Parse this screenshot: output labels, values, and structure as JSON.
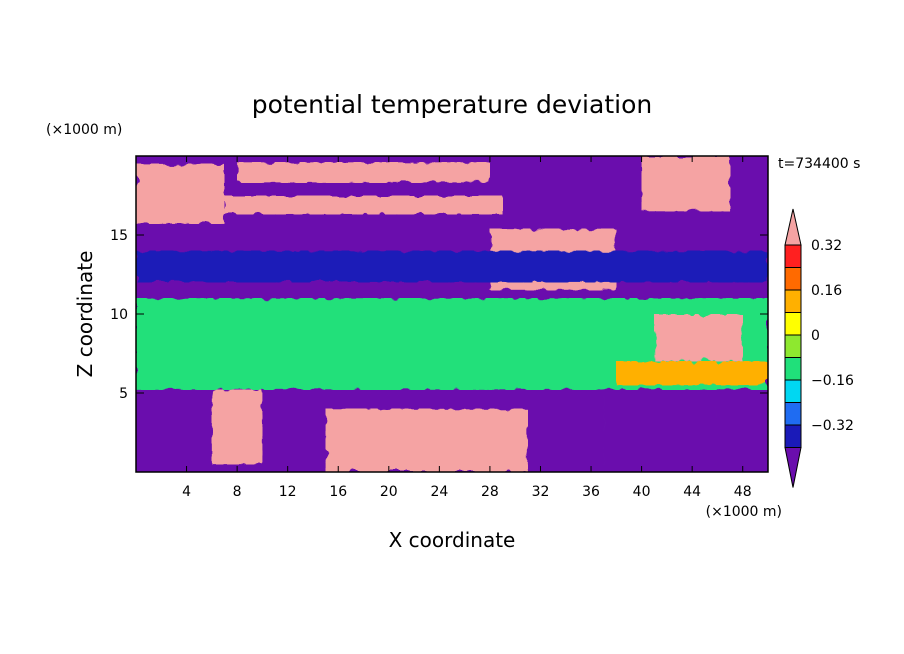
{
  "chart_data": {
    "type": "heatmap",
    "title": "potential temperature deviation",
    "xlabel": "X coordinate",
    "ylabel": "Z coordinate",
    "x_unit": "(×1000 m)",
    "y_unit": "(×1000 m)",
    "time_label": "t=734400 s",
    "xlim": [
      0,
      50
    ],
    "ylim": [
      0,
      20
    ],
    "x_ticks": [
      4,
      8,
      12,
      16,
      20,
      24,
      28,
      32,
      36,
      40,
      44,
      48
    ],
    "x_tick_labels": [
      "4",
      "8",
      "12",
      "16",
      "20",
      "24",
      "28",
      "32",
      "36",
      "40",
      "44",
      "48"
    ],
    "y_ticks": [
      5,
      10,
      15
    ],
    "y_tick_labels": [
      "5",
      "10",
      "15"
    ],
    "colorbar": {
      "levels": [
        -0.4,
        -0.32,
        -0.24,
        -0.16,
        -0.08,
        0,
        0.08,
        0.16,
        0.24,
        0.32,
        0.4
      ],
      "tick_values": [
        0.32,
        0.16,
        0,
        -0.16,
        -0.32
      ],
      "tick_labels": [
        "0.32",
        "0.16",
        "0",
        "−0.16",
        "−0.32"
      ],
      "colors": [
        "#6a0dad",
        "#1a1ab8",
        "#1f6cf2",
        "#00d7f2",
        "#20e07a",
        "#8ee82f",
        "#ffff00",
        "#ffb000",
        "#ff6a00",
        "#ff2020",
        "#f5a3a3"
      ],
      "extend": "both"
    },
    "regions": [
      {
        "level": -0.4,
        "x": [
          0,
          50
        ],
        "z": [
          0,
          20
        ]
      },
      {
        "level": -0.08,
        "x": [
          0,
          50
        ],
        "z": [
          5.2,
          11
        ]
      },
      {
        "level": 0.4,
        "x": [
          0,
          7
        ],
        "z": [
          15.7,
          19.5
        ]
      },
      {
        "level": 0.4,
        "x": [
          7,
          29
        ],
        "z": [
          16.3,
          17.5
        ]
      },
      {
        "level": 0.4,
        "x": [
          8,
          28
        ],
        "z": [
          18.3,
          19.6
        ]
      },
      {
        "level": 0.4,
        "x": [
          28,
          38
        ],
        "z": [
          11.5,
          15.4
        ]
      },
      {
        "level": 0.4,
        "x": [
          40,
          47
        ],
        "z": [
          16.5,
          20
        ]
      },
      {
        "level": 0.4,
        "x": [
          41,
          48
        ],
        "z": [
          7,
          10
        ]
      },
      {
        "level": 0.4,
        "x": [
          15,
          31
        ],
        "z": [
          0,
          4
        ]
      },
      {
        "level": 0.4,
        "x": [
          6,
          10
        ],
        "z": [
          0.5,
          5.2
        ]
      },
      {
        "level": -0.4,
        "x": [
          37,
          46
        ],
        "z": [
          0,
          5
        ]
      },
      {
        "level": -0.32,
        "x": [
          0,
          50
        ],
        "z": [
          12,
          14
        ]
      },
      {
        "level": 0.16,
        "x": [
          38,
          50
        ],
        "z": [
          5.5,
          7
        ]
      }
    ]
  }
}
